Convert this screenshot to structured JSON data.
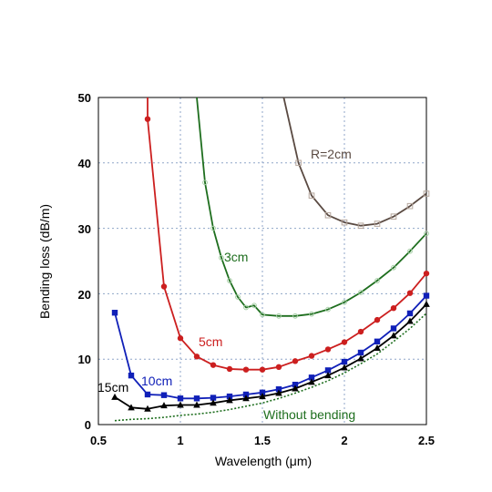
{
  "chart_data": {
    "type": "line",
    "xlabel": "Wavelength (μm)",
    "ylabel": "Bending  loss (dB/m)",
    "xlim": [
      0.5,
      2.5
    ],
    "ylim": [
      0,
      50
    ],
    "x_ticks": [
      "0.5",
      "1",
      "1.5",
      "2",
      "2.5"
    ],
    "y_ticks": [
      "0",
      "10",
      "20",
      "30",
      "40",
      "50"
    ],
    "grid": "dotted",
    "legend": "none (inline labels)",
    "series": [
      {
        "name": "R=2cm",
        "color": "#5a4a42",
        "marker": "open-square",
        "points": [
          [
            1.63,
            50
          ],
          [
            1.72,
            40
          ],
          [
            1.8,
            35
          ],
          [
            1.9,
            32
          ],
          [
            2.0,
            30.9
          ],
          [
            2.1,
            30.4
          ],
          [
            2.2,
            30.7
          ],
          [
            2.3,
            31.8
          ],
          [
            2.4,
            33.4
          ],
          [
            2.5,
            35.3
          ]
        ]
      },
      {
        "name": "3cm",
        "color": "#1e6e1e",
        "marker": "open-circle",
        "points": [
          [
            1.1,
            50
          ],
          [
            1.15,
            37
          ],
          [
            1.2,
            30
          ],
          [
            1.25,
            25.5
          ],
          [
            1.3,
            22
          ],
          [
            1.35,
            19.5
          ],
          [
            1.4,
            17.9
          ],
          [
            1.45,
            18.2
          ],
          [
            1.5,
            16.8
          ],
          [
            1.6,
            16.6
          ],
          [
            1.7,
            16.6
          ],
          [
            1.8,
            16.9
          ],
          [
            1.9,
            17.6
          ],
          [
            2.0,
            18.7
          ],
          [
            2.1,
            20.2
          ],
          [
            2.2,
            22
          ],
          [
            2.3,
            24
          ],
          [
            2.4,
            26.5
          ],
          [
            2.5,
            29.2
          ]
        ]
      },
      {
        "name": "5cm",
        "color": "#cc1f1f",
        "marker": "filled-circle",
        "points": [
          [
            0.8,
            50
          ],
          [
            0.8,
            46.7
          ],
          [
            0.9,
            21.1
          ],
          [
            1.0,
            13.2
          ],
          [
            1.1,
            10.4
          ],
          [
            1.2,
            9.1
          ],
          [
            1.3,
            8.5
          ],
          [
            1.4,
            8.4
          ],
          [
            1.5,
            8.4
          ],
          [
            1.6,
            8.8
          ],
          [
            1.7,
            9.7
          ],
          [
            1.8,
            10.5
          ],
          [
            1.9,
            11.5
          ],
          [
            2.0,
            12.6
          ],
          [
            2.1,
            14.2
          ],
          [
            2.2,
            16.0
          ],
          [
            2.3,
            17.8
          ],
          [
            2.4,
            20.1
          ],
          [
            2.5,
            23.1
          ]
        ]
      },
      {
        "name": "10cm",
        "color": "#1020b8",
        "marker": "filled-square",
        "points": [
          [
            0.6,
            17.1
          ],
          [
            0.7,
            7.5
          ],
          [
            0.8,
            4.6
          ],
          [
            0.9,
            4.5
          ],
          [
            1.0,
            4.0
          ],
          [
            1.1,
            4.0
          ],
          [
            1.2,
            4.1
          ],
          [
            1.3,
            4.3
          ],
          [
            1.4,
            4.6
          ],
          [
            1.5,
            4.9
          ],
          [
            1.6,
            5.4
          ],
          [
            1.7,
            6.1
          ],
          [
            1.8,
            7.2
          ],
          [
            1.9,
            8.3
          ],
          [
            2.0,
            9.6
          ],
          [
            2.1,
            11.0
          ],
          [
            2.2,
            12.7
          ],
          [
            2.3,
            14.7
          ],
          [
            2.4,
            17.0
          ],
          [
            2.5,
            19.7
          ]
        ]
      },
      {
        "name": "15cm",
        "color": "#000000",
        "marker": "filled-triangle",
        "points": [
          [
            0.6,
            4.2
          ],
          [
            0.7,
            2.6
          ],
          [
            0.8,
            2.4
          ],
          [
            0.9,
            2.9
          ],
          [
            1.0,
            3.0
          ],
          [
            1.1,
            3.0
          ],
          [
            1.2,
            3.3
          ],
          [
            1.3,
            3.7
          ],
          [
            1.4,
            4.0
          ],
          [
            1.5,
            4.3
          ],
          [
            1.6,
            4.8
          ],
          [
            1.7,
            5.5
          ],
          [
            1.8,
            6.5
          ],
          [
            1.9,
            7.5
          ],
          [
            2.0,
            8.7
          ],
          [
            2.1,
            10.1
          ],
          [
            2.2,
            11.7
          ],
          [
            2.3,
            13.6
          ],
          [
            2.4,
            15.8
          ],
          [
            2.5,
            18.4
          ]
        ]
      },
      {
        "name": "Without bending",
        "color": "#1e6e1e",
        "marker": "none",
        "dash": "dotted",
        "points": [
          [
            0.6,
            0.6
          ],
          [
            0.7,
            0.8
          ],
          [
            0.8,
            0.9
          ],
          [
            0.9,
            1.1
          ],
          [
            1.0,
            1.4
          ],
          [
            1.1,
            1.6
          ],
          [
            1.2,
            1.9
          ],
          [
            1.3,
            2.3
          ],
          [
            1.4,
            2.8
          ],
          [
            1.5,
            3.3
          ],
          [
            1.6,
            4.0
          ],
          [
            1.7,
            4.8
          ],
          [
            1.8,
            5.7
          ],
          [
            1.9,
            6.7
          ],
          [
            2.0,
            7.9
          ],
          [
            2.1,
            9.3
          ],
          [
            2.2,
            10.8
          ],
          [
            2.3,
            12.7
          ],
          [
            2.4,
            14.7
          ],
          [
            2.5,
            17.0
          ]
        ]
      }
    ],
    "labels": {
      "r2": "R=2cm",
      "r3": "3cm",
      "r5": "5cm",
      "r10": "10cm",
      "r15": "15cm",
      "nobend": "Without bending"
    }
  }
}
